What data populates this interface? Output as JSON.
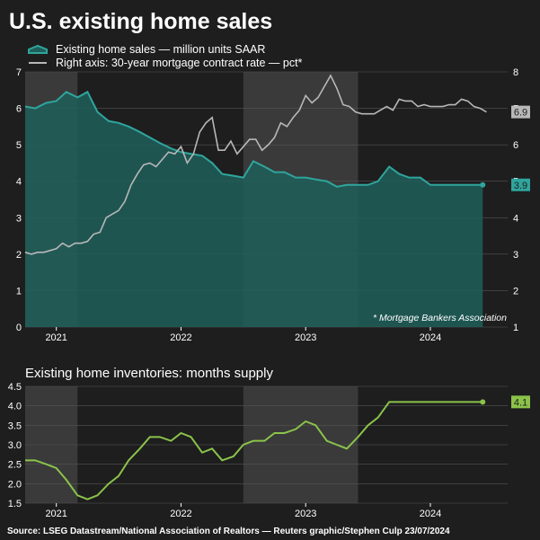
{
  "title": "U.S. existing home sales",
  "source": "Source: LSEG Datastream/National Association of Realtors  — Reuters graphic/Stephen Culp 23/07/2024",
  "colors": {
    "background": "#1e1e1e",
    "shade": "#3a3a3a",
    "sales": "#2fa59d",
    "sales_fill": "#1f5f5b",
    "rate": "#b8b8b8",
    "inventory": "#8bc34a",
    "grid": "#555555",
    "text": "#ffffff"
  },
  "chart_data": [
    {
      "type": "area",
      "legend": [
        {
          "name": "Existing home sales — million units SAAR",
          "color": "#2fa59d",
          "icon": "teal-area-swatch"
        },
        {
          "name": "Right axis: 30-year mortgage contract rate — pct*",
          "color": "#b8b8b8",
          "icon": "gray-line-swatch"
        }
      ],
      "note": "* Mortgage Bankers Association",
      "xlim": [
        2020.75,
        2024.62
      ],
      "ylim": [
        0,
        7
      ],
      "y2lim": [
        1,
        8
      ],
      "y_ticks": [
        "0",
        "1",
        "2",
        "3",
        "4",
        "5",
        "6",
        "7"
      ],
      "y2_ticks": [
        "1",
        "2",
        "3",
        "4",
        "5",
        "6",
        "7",
        "8"
      ],
      "x_ticks": [
        {
          "label": "2021",
          "x": 2021.0
        },
        {
          "label": "2022",
          "x": 2022.0
        },
        {
          "label": "2023",
          "x": 2023.0
        },
        {
          "label": "2024",
          "x": 2024.0
        }
      ],
      "shaded_periods": [
        [
          2020.75,
          2021.17
        ],
        [
          2022.5,
          2023.42
        ]
      ],
      "series": [
        {
          "name": "Existing home sales",
          "axis": "left",
          "end_label": "3.9",
          "x": [
            2020.75,
            2020.83,
            2020.92,
            2021.0,
            2021.08,
            2021.17,
            2021.25,
            2021.33,
            2021.42,
            2021.5,
            2021.58,
            2021.67,
            2021.75,
            2021.83,
            2021.92,
            2022.0,
            2022.08,
            2022.17,
            2022.25,
            2022.33,
            2022.42,
            2022.5,
            2022.58,
            2022.67,
            2022.75,
            2022.83,
            2022.92,
            2023.0,
            2023.08,
            2023.17,
            2023.25,
            2023.33,
            2023.42,
            2023.5,
            2023.58,
            2023.67,
            2023.75,
            2023.83,
            2023.92,
            2024.0,
            2024.08,
            2024.17,
            2024.25,
            2024.33,
            2024.42
          ],
          "values": [
            6.05,
            6.0,
            6.15,
            6.2,
            6.45,
            6.3,
            6.45,
            5.9,
            5.65,
            5.6,
            5.5,
            5.35,
            5.2,
            5.05,
            4.9,
            4.8,
            4.75,
            4.7,
            4.5,
            4.2,
            4.15,
            4.1,
            4.55,
            4.4,
            4.25,
            4.25,
            4.1,
            4.1,
            4.05,
            4.0,
            3.85,
            3.9,
            3.9,
            3.9,
            4.0,
            4.4,
            4.2,
            4.1,
            4.1,
            3.9,
            3.9,
            3.9,
            3.9,
            3.9,
            3.9
          ]
        },
        {
          "name": "30-year mortgage contract rate",
          "axis": "right",
          "end_label": "6.9",
          "x": [
            2020.75,
            2020.8,
            2020.85,
            2020.9,
            2020.95,
            2021.0,
            2021.05,
            2021.1,
            2021.15,
            2021.2,
            2021.25,
            2021.3,
            2021.35,
            2021.4,
            2021.45,
            2021.5,
            2021.55,
            2021.6,
            2021.65,
            2021.7,
            2021.75,
            2021.8,
            2021.85,
            2021.9,
            2021.95,
            2022.0,
            2022.05,
            2022.1,
            2022.15,
            2022.2,
            2022.25,
            2022.3,
            2022.35,
            2022.4,
            2022.45,
            2022.5,
            2022.55,
            2022.6,
            2022.65,
            2022.7,
            2022.75,
            2022.8,
            2022.85,
            2022.9,
            2022.95,
            2023.0,
            2023.05,
            2023.1,
            2023.15,
            2023.2,
            2023.25,
            2023.3,
            2023.35,
            2023.4,
            2023.45,
            2023.5,
            2023.55,
            2023.6,
            2023.65,
            2023.7,
            2023.75,
            2023.8,
            2023.85,
            2023.9,
            2023.95,
            2024.0,
            2024.05,
            2024.1,
            2024.15,
            2024.2,
            2024.25,
            2024.3,
            2024.35,
            2024.4,
            2024.45
          ],
          "values": [
            3.05,
            3.0,
            3.05,
            3.05,
            3.1,
            3.15,
            3.3,
            3.2,
            3.3,
            3.3,
            3.35,
            3.55,
            3.6,
            4.0,
            4.1,
            4.2,
            4.45,
            4.9,
            5.2,
            5.45,
            5.5,
            5.4,
            5.6,
            5.8,
            5.75,
            5.95,
            5.5,
            5.75,
            6.35,
            6.6,
            6.75,
            5.85,
            5.85,
            6.1,
            5.75,
            5.95,
            6.15,
            6.15,
            5.85,
            6.0,
            6.2,
            6.6,
            6.5,
            6.75,
            6.95,
            7.35,
            7.15,
            7.3,
            7.6,
            7.9,
            7.55,
            7.1,
            7.05,
            6.9,
            6.85,
            6.85,
            6.85,
            6.95,
            7.05,
            6.95,
            7.25,
            7.2,
            7.2,
            7.05,
            7.1,
            7.05,
            7.05,
            7.05,
            7.1,
            7.1,
            7.25,
            7.2,
            7.05,
            7.0,
            6.9
          ]
        }
      ]
    },
    {
      "type": "line",
      "title": "Existing home inventories: months supply",
      "xlim": [
        2020.75,
        2024.62
      ],
      "ylim": [
        1.5,
        4.5
      ],
      "y_ticks": [
        "1.5",
        "2.0",
        "2.5",
        "3.0",
        "3.5",
        "4.0",
        "4.5"
      ],
      "x_ticks": [
        {
          "label": "2021",
          "x": 2021.0
        },
        {
          "label": "2022",
          "x": 2022.0
        },
        {
          "label": "2023",
          "x": 2023.0
        },
        {
          "label": "2024",
          "x": 2024.0
        }
      ],
      "shaded_periods": [
        [
          2020.75,
          2021.17
        ],
        [
          2022.5,
          2023.42
        ]
      ],
      "series": [
        {
          "name": "Months supply",
          "end_label": "4.1",
          "x": [
            2020.75,
            2020.83,
            2020.92,
            2021.0,
            2021.08,
            2021.17,
            2021.25,
            2021.33,
            2021.42,
            2021.5,
            2021.58,
            2021.67,
            2021.75,
            2021.83,
            2021.92,
            2022.0,
            2022.08,
            2022.17,
            2022.25,
            2022.33,
            2022.42,
            2022.5,
            2022.58,
            2022.67,
            2022.75,
            2022.83,
            2022.92,
            2023.0,
            2023.08,
            2023.17,
            2023.25,
            2023.33,
            2023.42,
            2023.5,
            2023.58,
            2023.67,
            2023.75,
            2023.83,
            2023.92,
            2024.0,
            2024.08,
            2024.17,
            2024.25,
            2024.33,
            2024.42
          ],
          "values": [
            2.6,
            2.6,
            2.5,
            2.4,
            2.1,
            1.7,
            1.6,
            1.7,
            2.0,
            2.2,
            2.6,
            2.9,
            3.2,
            3.2,
            3.1,
            3.3,
            3.2,
            2.8,
            2.9,
            2.6,
            2.7,
            3.0,
            3.1,
            3.1,
            3.3,
            3.3,
            3.4,
            3.6,
            3.5,
            3.1,
            3.0,
            2.9,
            3.2,
            3.5,
            3.7,
            4.1,
            4.1,
            4.1,
            4.1,
            4.1,
            4.1,
            4.1,
            4.1,
            4.1,
            4.1
          ]
        }
      ]
    }
  ]
}
